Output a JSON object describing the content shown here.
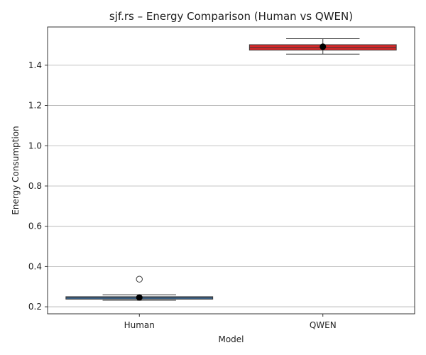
{
  "chart_data": {
    "type": "box",
    "title": "sjf.rs – Energy Comparison (Human vs QWEN)",
    "xlabel": "Model",
    "ylabel": "Energy Consumption",
    "categories": [
      "Human",
      "QWEN"
    ],
    "ylim": [
      0.165,
      1.59
    ],
    "yticks": [
      0.2,
      0.4,
      0.6,
      0.8,
      1.0,
      1.2,
      1.4
    ],
    "ytick_labels": [
      "0.2",
      "0.4",
      "0.6",
      "0.8",
      "1.0",
      "1.2",
      "1.4"
    ],
    "grid": "horizontal",
    "boxes": [
      {
        "category": "Human",
        "whisker_low": 0.232,
        "q1": 0.238,
        "median": 0.244,
        "q3": 0.25,
        "whisker_high": 0.26,
        "mean": 0.246,
        "outliers": [
          0.337
        ],
        "color": "#3b75af"
      },
      {
        "category": "QWEN",
        "whisker_low": 1.455,
        "q1": 1.475,
        "median": 1.488,
        "q3": 1.502,
        "whisker_high": 1.532,
        "mean": 1.492,
        "outliers": [],
        "color": "#d62728"
      }
    ]
  }
}
